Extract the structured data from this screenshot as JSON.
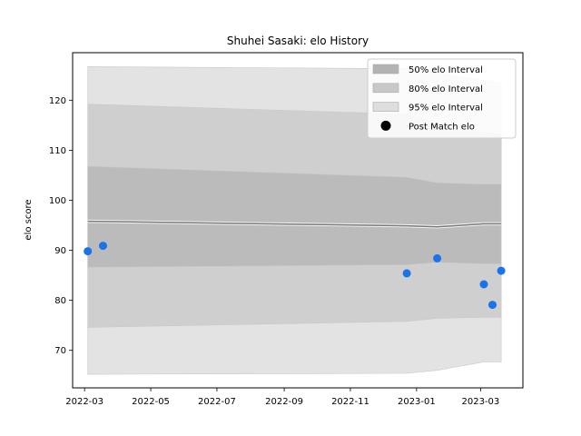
{
  "chart_data": {
    "type": "area",
    "title": "Shuhei Sasaki: elo History",
    "xlabel": "",
    "ylabel": "elo score",
    "xlim": [
      "2022-02-18",
      "2023-04-09"
    ],
    "ylim": [
      62.5,
      129.5
    ],
    "x_ticks": [
      "2022-03",
      "2022-05",
      "2022-07",
      "2022-09",
      "2022-11",
      "2023-01",
      "2023-03"
    ],
    "y_ticks": [
      70,
      80,
      90,
      100,
      110,
      120
    ],
    "grid": false,
    "legend_position": "top-right",
    "dates": [
      "2022-03-04",
      "2022-12-23",
      "2023-01-20",
      "2023-03-04",
      "2023-03-20"
    ],
    "mean": [
      95.8,
      94.9,
      94.7,
      95.3,
      95.3
    ],
    "bands": [
      {
        "name": "95% elo Interval",
        "color": "#e3e3e3",
        "lower": [
          65.2,
          65.4,
          66.0,
          67.7,
          67.7
        ],
        "upper": [
          126.7,
          126.3,
          125.5,
          124.0,
          123.5
        ]
      },
      {
        "name": "80% elo Interval",
        "color": "#cfcfcf",
        "lower": [
          74.6,
          75.8,
          76.4,
          76.6,
          76.6
        ],
        "upper": [
          119.2,
          117.2,
          115.4,
          113.6,
          113.1
        ]
      },
      {
        "name": "50% elo Interval",
        "color": "#bbbbbb",
        "lower": [
          86.6,
          87.1,
          87.6,
          87.3,
          87.3
        ],
        "upper": [
          106.8,
          104.6,
          103.5,
          103.2,
          103.2
        ]
      }
    ],
    "points": {
      "name": "Post Match elo",
      "color": "#1a73e8",
      "x": [
        "2022-03-04",
        "2022-03-18",
        "2022-12-23",
        "2023-01-20",
        "2023-03-04",
        "2023-03-12",
        "2023-03-20"
      ],
      "y": [
        89.8,
        90.9,
        85.4,
        88.4,
        83.2,
        79.1,
        85.9
      ]
    },
    "legend": [
      {
        "label": "50% elo Interval",
        "kind": "patch",
        "color": "#b3b3b3"
      },
      {
        "label": "80% elo Interval",
        "kind": "patch",
        "color": "#c8c8c8"
      },
      {
        "label": "95% elo Interval",
        "kind": "patch",
        "color": "#dedede"
      },
      {
        "label": "Post Match elo",
        "kind": "marker",
        "color": "#000000"
      }
    ]
  }
}
